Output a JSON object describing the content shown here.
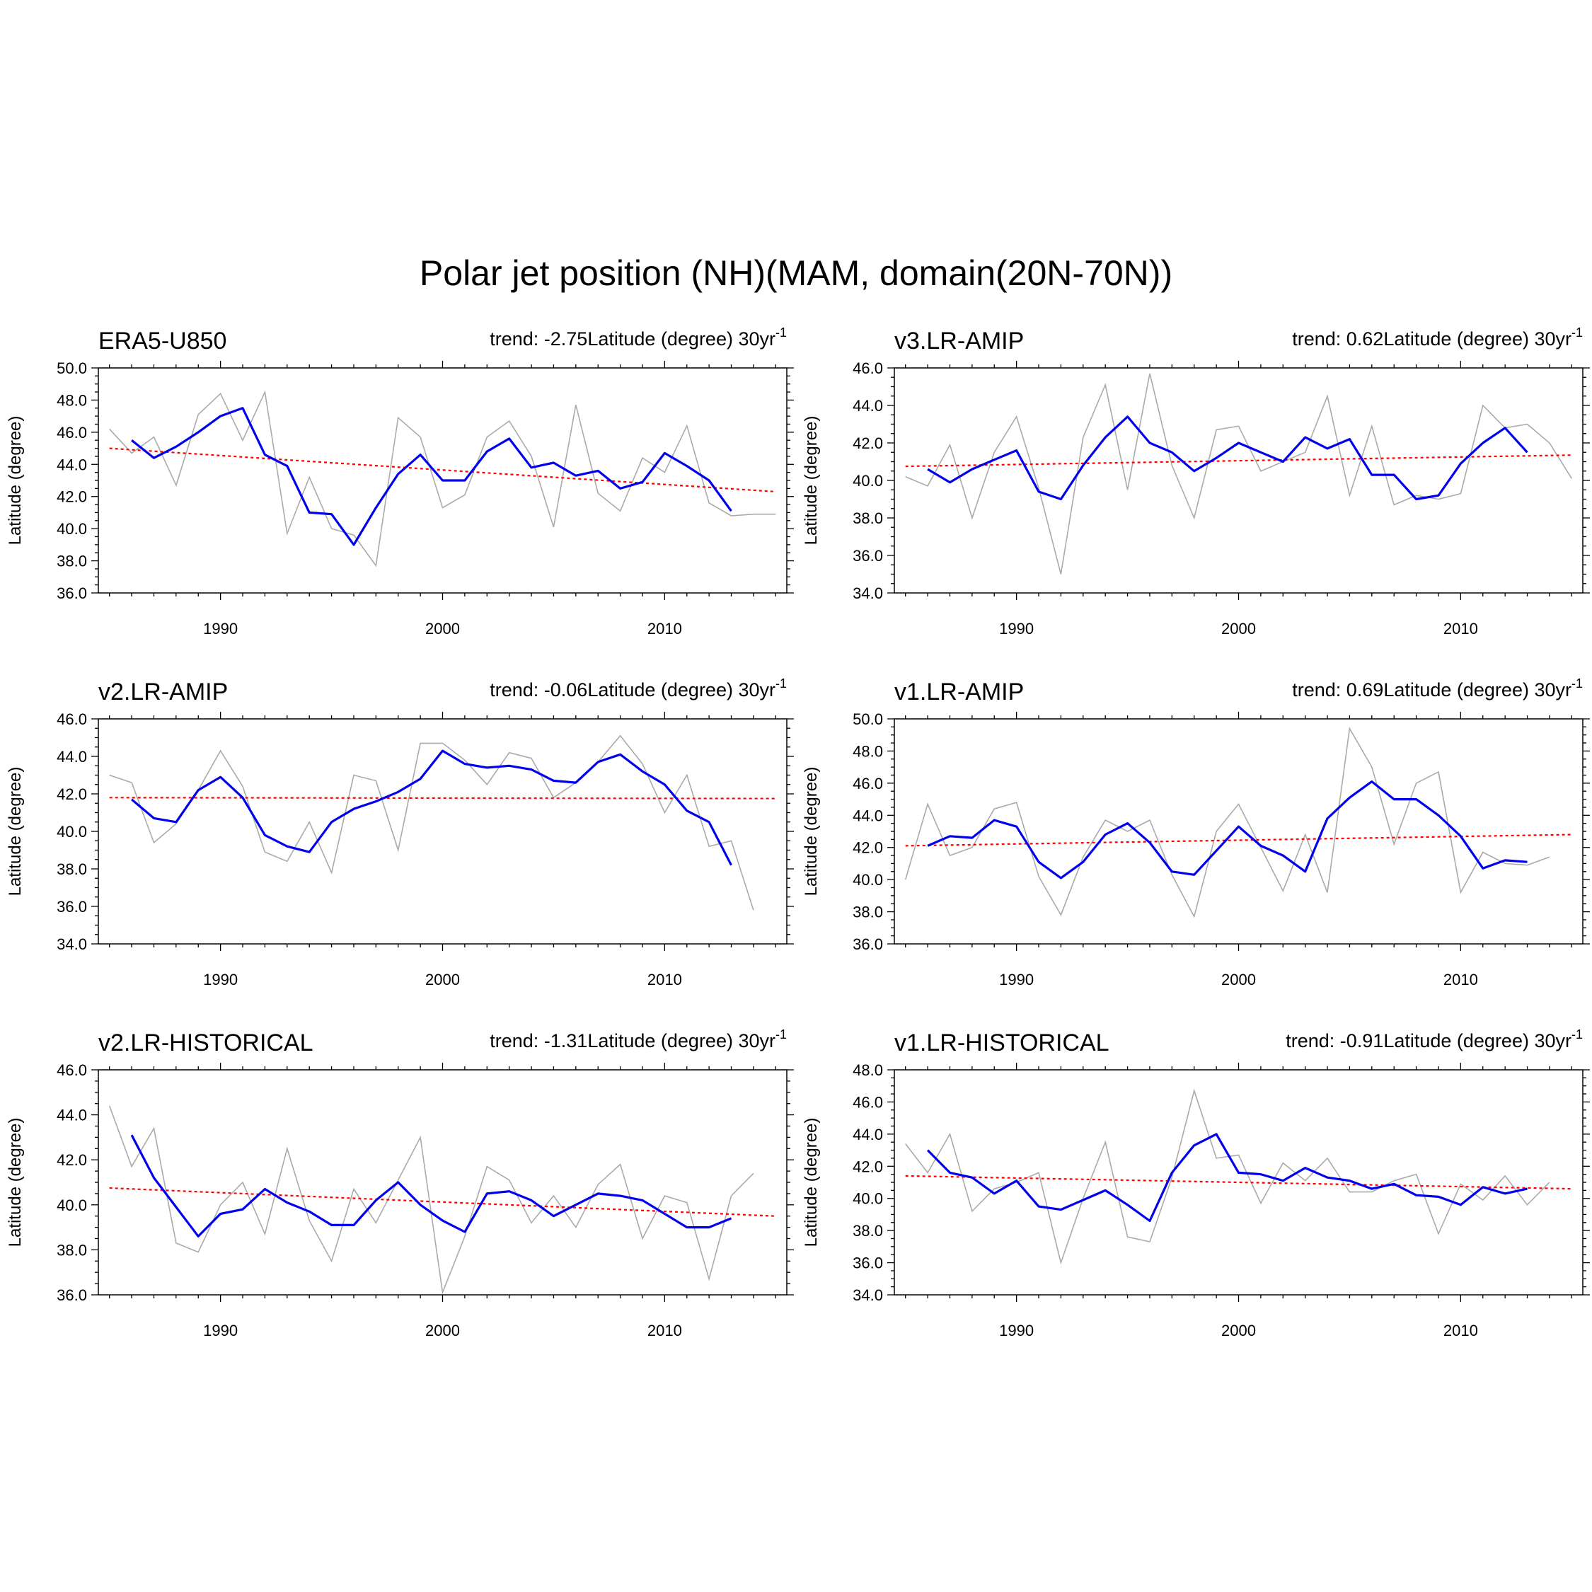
{
  "figure": {
    "title": "Polar jet position (NH)(MAM, domain(20N-70N))"
  },
  "colors": {
    "raw": "#aaaaaa",
    "smoothed": "#0000ee",
    "trend": "#ff0000"
  },
  "chart_data": [
    {
      "type": "line",
      "title": "ERA5-U850",
      "trend_text": "trend: -2.75Latitude (degree) 30yr",
      "trend_exponent": "-1",
      "ylabel": "Latitude (degree)",
      "xlabel": "",
      "xlim": [
        1984.5,
        2015.5
      ],
      "ylim": [
        36,
        50
      ],
      "yticks": [
        "36.0",
        "38.0",
        "40.0",
        "42.0",
        "44.0",
        "46.0",
        "48.0",
        "50.0"
      ],
      "xticks": [
        "1990",
        "2000",
        "2010"
      ],
      "x": [
        1985,
        1986,
        1987,
        1988,
        1989,
        1990,
        1991,
        1992,
        1993,
        1994,
        1995,
        1996,
        1997,
        1998,
        1999,
        2000,
        2001,
        2002,
        2003,
        2004,
        2005,
        2006,
        2007,
        2008,
        2009,
        2010,
        2011,
        2012,
        2013,
        2014,
        2015
      ],
      "series": [
        {
          "name": "annual",
          "values": [
            46.2,
            44.7,
            45.7,
            42.7,
            47.1,
            48.4,
            45.5,
            48.5,
            39.7,
            43.2,
            40.0,
            39.6,
            37.7,
            46.9,
            45.7,
            41.3,
            42.1,
            45.7,
            46.7,
            44.5,
            40.1,
            47.7,
            42.2,
            41.1,
            44.4,
            43.5,
            46.4,
            41.6,
            40.8,
            40.9,
            40.9
          ]
        },
        {
          "name": "smoothed",
          "values": [
            null,
            45.5,
            44.4,
            45.1,
            46.0,
            47.0,
            47.5,
            44.6,
            43.9,
            41.0,
            40.9,
            39.0,
            41.3,
            43.4,
            44.6,
            43.0,
            43.0,
            44.8,
            45.6,
            43.8,
            44.1,
            43.3,
            43.6,
            42.5,
            42.9,
            44.7,
            43.9,
            43.0,
            41.1,
            null,
            null
          ]
        },
        {
          "name": "trend",
          "x": [
            1985,
            2015
          ],
          "values": [
            45.0,
            42.3
          ]
        }
      ]
    },
    {
      "type": "line",
      "title": "v3.LR-AMIP",
      "trend_text": "trend: 0.62Latitude (degree) 30yr",
      "trend_exponent": "-1",
      "ylabel": "Latitude (degree)",
      "xlabel": "",
      "xlim": [
        1984.5,
        2015.5
      ],
      "ylim": [
        34,
        46
      ],
      "yticks": [
        "34.0",
        "36.0",
        "38.0",
        "40.0",
        "42.0",
        "44.0",
        "46.0"
      ],
      "xticks": [
        "1990",
        "2000",
        "2010"
      ],
      "x": [
        1985,
        1986,
        1987,
        1988,
        1989,
        1990,
        1991,
        1992,
        1993,
        1994,
        1995,
        1996,
        1997,
        1998,
        1999,
        2000,
        2001,
        2002,
        2003,
        2004,
        2005,
        2006,
        2007,
        2008,
        2009,
        2010,
        2011,
        2012,
        2013,
        2014,
        2015
      ],
      "series": [
        {
          "name": "annual",
          "values": [
            40.2,
            39.7,
            41.9,
            38.0,
            41.5,
            43.4,
            39.6,
            35.0,
            42.3,
            45.1,
            39.5,
            45.7,
            40.8,
            38.0,
            42.7,
            42.9,
            40.5,
            41.0,
            41.5,
            44.5,
            39.2,
            42.9,
            38.7,
            39.2,
            39.0,
            39.3,
            44.0,
            42.8,
            43.0,
            42.0,
            40.1
          ]
        },
        {
          "name": "smoothed",
          "values": [
            null,
            40.6,
            39.9,
            40.6,
            41.1,
            41.6,
            39.4,
            39.0,
            40.8,
            42.3,
            43.4,
            42.0,
            41.5,
            40.5,
            41.2,
            42.0,
            41.5,
            41.0,
            42.3,
            41.7,
            42.2,
            40.3,
            40.3,
            39.0,
            39.2,
            40.9,
            42.0,
            42.8,
            41.5,
            null,
            null
          ]
        },
        {
          "name": "trend",
          "x": [
            1985,
            2015
          ],
          "values": [
            40.75,
            41.35
          ]
        }
      ]
    },
    {
      "type": "line",
      "title": "v2.LR-AMIP",
      "trend_text": "trend: -0.06Latitude (degree) 30yr",
      "trend_exponent": "-1",
      "ylabel": "Latitude (degree)",
      "xlabel": "",
      "xlim": [
        1984.5,
        2015.5
      ],
      "ylim": [
        34,
        46
      ],
      "yticks": [
        "34.0",
        "36.0",
        "38.0",
        "40.0",
        "42.0",
        "44.0",
        "46.0"
      ],
      "xticks": [
        "1990",
        "2000",
        "2010"
      ],
      "x": [
        1985,
        1986,
        1987,
        1988,
        1989,
        1990,
        1991,
        1992,
        1993,
        1994,
        1995,
        1996,
        1997,
        1998,
        1999,
        2000,
        2001,
        2002,
        2003,
        2004,
        2005,
        2006,
        2007,
        2008,
        2009,
        2010,
        2011,
        2012,
        2013,
        2014,
        2015
      ],
      "series": [
        {
          "name": "annual",
          "values": [
            43.0,
            42.6,
            39.4,
            40.4,
            42.2,
            44.3,
            42.4,
            38.9,
            38.4,
            40.5,
            37.8,
            43.0,
            42.7,
            39.0,
            44.7,
            44.7,
            43.8,
            42.5,
            44.2,
            43.9,
            41.8,
            42.6,
            43.7,
            45.1,
            43.6,
            41.0,
            43.0,
            39.2,
            39.5,
            35.8,
            null
          ]
        },
        {
          "name": "smoothed",
          "values": [
            null,
            41.7,
            40.7,
            40.5,
            42.2,
            42.9,
            41.8,
            39.8,
            39.2,
            38.9,
            40.5,
            41.2,
            41.6,
            42.1,
            42.8,
            44.3,
            43.6,
            43.4,
            43.5,
            43.3,
            42.7,
            42.6,
            43.7,
            44.1,
            43.2,
            42.5,
            41.1,
            40.5,
            38.2,
            null,
            null
          ]
        },
        {
          "name": "trend",
          "x": [
            1985,
            2015
          ],
          "values": [
            41.8,
            41.75
          ]
        }
      ]
    },
    {
      "type": "line",
      "title": "v1.LR-AMIP",
      "trend_text": "trend: 0.69Latitude (degree) 30yr",
      "trend_exponent": "-1",
      "ylabel": "Latitude (degree)",
      "xlabel": "",
      "xlim": [
        1984.5,
        2015.5
      ],
      "ylim": [
        36,
        50
      ],
      "yticks": [
        "36.0",
        "38.0",
        "40.0",
        "42.0",
        "44.0",
        "46.0",
        "48.0",
        "50.0"
      ],
      "xticks": [
        "1990",
        "2000",
        "2010"
      ],
      "x": [
        1985,
        1986,
        1987,
        1988,
        1989,
        1990,
        1991,
        1992,
        1993,
        1994,
        1995,
        1996,
        1997,
        1998,
        1999,
        2000,
        2001,
        2002,
        2003,
        2004,
        2005,
        2006,
        2007,
        2008,
        2009,
        2010,
        2011,
        2012,
        2013,
        2014,
        2015
      ],
      "series": [
        {
          "name": "annual",
          "values": [
            40.0,
            44.7,
            41.5,
            42.0,
            44.4,
            44.8,
            40.2,
            37.8,
            41.4,
            43.7,
            43.0,
            43.7,
            40.3,
            37.7,
            43.0,
            44.7,
            42.0,
            39.3,
            42.8,
            39.2,
            49.4,
            47.0,
            42.2,
            46.0,
            46.7,
            39.2,
            41.7,
            41.0,
            40.9,
            41.4,
            null
          ]
        },
        {
          "name": "smoothed",
          "values": [
            null,
            42.1,
            42.7,
            42.6,
            43.7,
            43.3,
            41.1,
            40.1,
            41.1,
            42.8,
            43.5,
            42.3,
            40.5,
            40.3,
            41.8,
            43.3,
            42.1,
            41.5,
            40.5,
            43.8,
            45.1,
            46.1,
            45.0,
            45.0,
            44.0,
            42.7,
            40.7,
            41.2,
            41.1,
            null,
            null
          ]
        },
        {
          "name": "trend",
          "x": [
            1985,
            2015
          ],
          "values": [
            42.1,
            42.8
          ]
        }
      ]
    },
    {
      "type": "line",
      "title": "v2.LR-HISTORICAL",
      "trend_text": "trend: -1.31Latitude (degree) 30yr",
      "trend_exponent": "-1",
      "ylabel": "Latitude (degree)",
      "xlabel": "",
      "xlim": [
        1984.5,
        2015.5
      ],
      "ylim": [
        36,
        46
      ],
      "yticks": [
        "36.0",
        "38.0",
        "40.0",
        "42.0",
        "44.0",
        "46.0"
      ],
      "xticks": [
        "1990",
        "2000",
        "2010"
      ],
      "x": [
        1985,
        1986,
        1987,
        1988,
        1989,
        1990,
        1991,
        1992,
        1993,
        1994,
        1995,
        1996,
        1997,
        1998,
        1999,
        2000,
        2001,
        2002,
        2003,
        2004,
        2005,
        2006,
        2007,
        2008,
        2009,
        2010,
        2011,
        2012,
        2013,
        2014,
        2015
      ],
      "series": [
        {
          "name": "annual",
          "values": [
            44.4,
            41.7,
            43.4,
            38.3,
            37.9,
            40.0,
            41.0,
            38.7,
            42.5,
            39.3,
            37.5,
            40.7,
            39.2,
            41.1,
            43.0,
            36.1,
            38.6,
            41.7,
            41.1,
            39.2,
            40.4,
            39.0,
            40.9,
            41.8,
            38.5,
            40.4,
            40.1,
            36.7,
            40.4,
            41.4,
            null
          ]
        },
        {
          "name": "smoothed",
          "values": [
            null,
            43.1,
            41.2,
            39.9,
            38.6,
            39.6,
            39.8,
            40.7,
            40.1,
            39.7,
            39.1,
            39.1,
            40.2,
            41.0,
            40.0,
            39.3,
            38.8,
            40.5,
            40.6,
            40.2,
            39.5,
            40.0,
            40.5,
            40.4,
            40.2,
            39.6,
            39.0,
            39.0,
            39.4,
            null,
            null
          ]
        },
        {
          "name": "trend",
          "x": [
            1985,
            2015
          ],
          "values": [
            40.75,
            39.5
          ]
        }
      ]
    },
    {
      "type": "line",
      "title": "v1.LR-HISTORICAL",
      "trend_text": "trend: -0.91Latitude (degree) 30yr",
      "trend_exponent": "-1",
      "ylabel": "Latitude (degree)",
      "xlabel": "",
      "xlim": [
        1984.5,
        2015.5
      ],
      "ylim": [
        34,
        48
      ],
      "yticks": [
        "34.0",
        "36.0",
        "38.0",
        "40.0",
        "42.0",
        "44.0",
        "46.0",
        "48.0"
      ],
      "xticks": [
        "1990",
        "2000",
        "2010"
      ],
      "x": [
        1985,
        1986,
        1987,
        1988,
        1989,
        1990,
        1991,
        1992,
        1993,
        1994,
        1995,
        1996,
        1997,
        1998,
        1999,
        2000,
        2001,
        2002,
        2003,
        2004,
        2005,
        2006,
        2007,
        2008,
        2009,
        2010,
        2011,
        2012,
        2013,
        2014,
        2015
      ],
      "series": [
        {
          "name": "annual",
          "values": [
            43.4,
            41.6,
            44.0,
            39.2,
            40.6,
            41.0,
            41.6,
            36.0,
            40.0,
            43.5,
            37.6,
            37.3,
            41.3,
            46.7,
            42.5,
            42.7,
            39.7,
            42.2,
            41.1,
            42.5,
            40.4,
            40.4,
            41.1,
            41.5,
            37.8,
            40.9,
            39.9,
            41.4,
            39.6,
            41.0,
            null
          ]
        },
        {
          "name": "smoothed",
          "values": [
            null,
            43.0,
            41.6,
            41.3,
            40.3,
            41.1,
            39.5,
            39.3,
            39.9,
            40.5,
            39.6,
            38.6,
            41.6,
            43.3,
            44.0,
            41.6,
            41.5,
            41.1,
            41.9,
            41.3,
            41.1,
            40.6,
            40.9,
            40.2,
            40.1,
            39.6,
            40.7,
            40.3,
            40.6,
            null,
            null
          ]
        },
        {
          "name": "trend",
          "x": [
            1985,
            2015
          ],
          "values": [
            41.4,
            40.6
          ]
        }
      ]
    }
  ]
}
